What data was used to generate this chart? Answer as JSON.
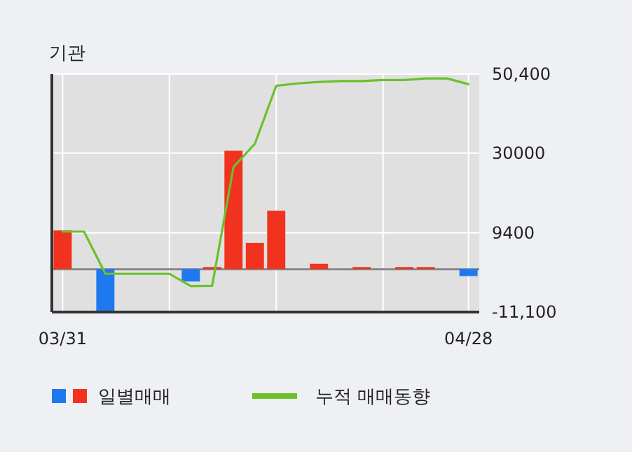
{
  "chart_data": {
    "type": "bar",
    "title": "기관",
    "categories": [
      "03/31",
      null,
      null,
      null,
      null,
      null,
      null,
      null,
      null,
      null,
      null,
      null,
      null,
      null,
      null,
      null,
      null,
      null,
      null,
      "04/28"
    ],
    "series": [
      {
        "name": "일별매매",
        "colors": [
          "#f0321e",
          "#f0321e",
          "#1e78f0",
          "#f0321e",
          "#f0321e",
          "#f0321e",
          "#1e78f0",
          "#f0321e",
          "#f0321e",
          "#f0321e",
          "#f0321e",
          "#f0321e",
          "#f0321e",
          "#f0321e",
          "#f0321e",
          "#f0321e",
          "#f0321e",
          "#f0321e",
          "#f0321e",
          "#1e78f0"
        ],
        "values": [
          10000,
          0,
          -10800,
          0,
          0,
          0,
          -3200,
          500,
          30600,
          6800,
          15100,
          0,
          1400,
          0,
          500,
          0,
          500,
          500,
          0,
          -1800
        ]
      },
      {
        "name": "누적 매매동향",
        "type": "line",
        "color": "#6cc02c",
        "values": [
          9700,
          9700,
          -1200,
          -1200,
          -1200,
          -1200,
          -4400,
          -4300,
          26400,
          32400,
          47400,
          48000,
          48400,
          48600,
          48600,
          48900,
          48900,
          49300,
          49300,
          47800
        ]
      }
    ],
    "ylim": [
      -11100,
      50400
    ],
    "yticks": [
      {
        "value": 50400,
        "label": "50,400"
      },
      30000,
      9400,
      {
        "value": -11100,
        "label": "-11,100"
      }
    ],
    "grid": true,
    "legend": "bottom"
  }
}
